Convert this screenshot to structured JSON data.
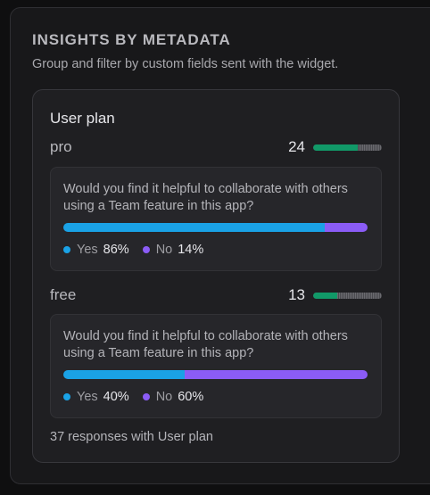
{
  "section": {
    "title": "INSIGHTS BY METADATA",
    "subtitle": "Group and filter by custom fields sent with the widget."
  },
  "card": {
    "title": "User plan",
    "footer": "37 responses with User plan"
  },
  "colors": {
    "yes": "#1aa2e6",
    "no": "#8b5cf6",
    "segment_bar": "#119968"
  },
  "segments": [
    {
      "name": "pro",
      "count": "24",
      "share": 0.65,
      "question": "Would you find it helpful to collaborate with others using a Team feature in this app?",
      "yes_label": "Yes",
      "yes_value": "86%",
      "yes_fraction": 0.86,
      "no_label": "No",
      "no_value": "14%",
      "no_fraction": 0.14
    },
    {
      "name": "free",
      "count": "13",
      "share": 0.35,
      "question": "Would you find it helpful to collaborate with others using a Team feature in this app?",
      "yes_label": "Yes",
      "yes_value": "40%",
      "yes_fraction": 0.4,
      "no_label": "No",
      "no_value": "60%",
      "no_fraction": 0.6
    }
  ]
}
